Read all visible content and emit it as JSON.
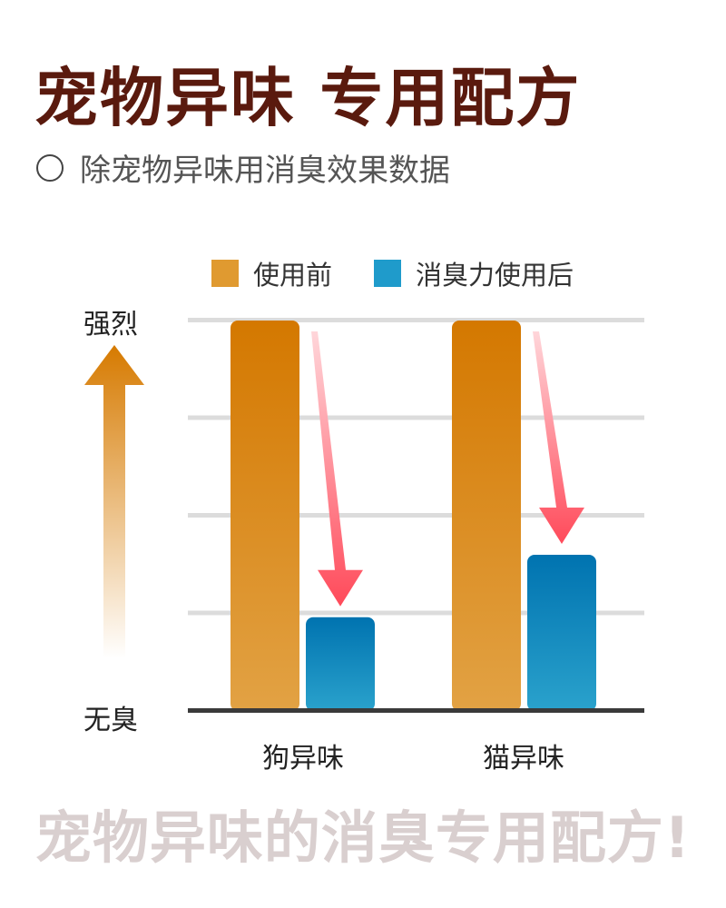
{
  "header": {
    "title": "宠物异味 专用配方",
    "subtitle": "除宠物异味用消臭效果数据"
  },
  "chart_data": {
    "type": "bar",
    "categories": [
      "狗异味",
      "猫异味"
    ],
    "series": [
      {
        "name": "使用前",
        "values": [
          100,
          100
        ],
        "color": "#e09a30"
      },
      {
        "name": "消臭力使用后",
        "values": [
          24,
          40
        ],
        "color": "#1f8fc4"
      }
    ],
    "ylim": [
      0,
      100
    ],
    "y_top_label": "强烈",
    "y_bottom_label": "无臭",
    "grid": true,
    "gridlines": [
      25,
      50,
      75,
      100
    ],
    "legend_position": "top",
    "annotations": "red downward arrows from before-bar to after-bar"
  },
  "footer": {
    "slogan": "宠物异味的消臭专用配方!"
  }
}
